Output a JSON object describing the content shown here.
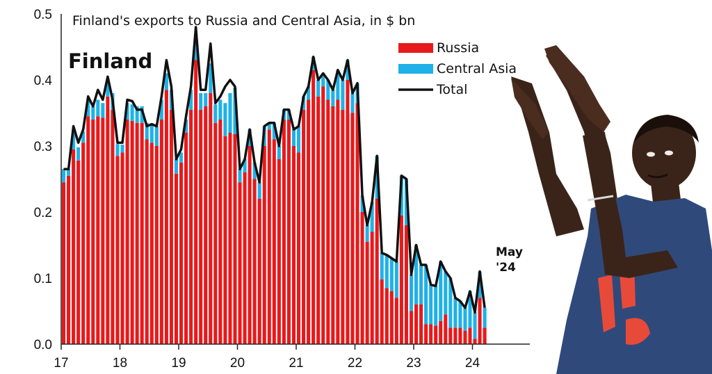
{
  "chart_data": {
    "type": "bar",
    "title": "Finland's exports to Russia and Central Asia, in $ bn",
    "label": "Finland",
    "annotation": [
      "May",
      "'24"
    ],
    "ylim": [
      0,
      0.5
    ],
    "yticks": [
      "0.0",
      "0.1",
      "0.2",
      "0.3",
      "0.4",
      "0.5"
    ],
    "xticks": [
      "17",
      "18",
      "19",
      "20",
      "21",
      "22",
      "23",
      "24"
    ],
    "x_start": "2017-01",
    "x_end": "2024-05",
    "stacked": true,
    "grid": false,
    "legend_position": "top-right",
    "legend": [
      {
        "label": "Russia",
        "color": "#e8191b",
        "kind": "bar"
      },
      {
        "label": "Central Asia",
        "color": "#1fb1e8",
        "kind": "bar"
      },
      {
        "label": "Total",
        "color": "#111111",
        "kind": "line"
      }
    ],
    "series": [
      {
        "name": "Russia",
        "color": "#e8191b",
        "values": [
          0.245,
          0.255,
          0.295,
          0.278,
          0.305,
          0.345,
          0.34,
          0.345,
          0.343,
          0.375,
          0.355,
          0.285,
          0.29,
          0.34,
          0.338,
          0.335,
          0.335,
          0.31,
          0.305,
          0.3,
          0.34,
          0.385,
          0.355,
          0.258,
          0.275,
          0.32,
          0.355,
          0.43,
          0.355,
          0.36,
          0.38,
          0.335,
          0.34,
          0.315,
          0.32,
          0.318,
          0.245,
          0.26,
          0.3,
          0.25,
          0.22,
          0.3,
          0.325,
          0.31,
          0.28,
          0.34,
          0.34,
          0.3,
          0.29,
          0.355,
          0.37,
          0.415,
          0.375,
          0.39,
          0.37,
          0.36,
          0.37,
          0.355,
          0.4,
          0.35,
          0.365,
          0.2,
          0.155,
          0.17,
          0.22,
          0.098,
          0.085,
          0.08,
          0.07,
          0.195,
          0.18,
          0.05,
          0.06,
          0.06,
          0.03,
          0.03,
          0.028,
          0.035,
          0.045,
          0.025,
          0.025,
          0.025,
          0.02,
          0.025,
          0.008,
          0.07,
          0.025
        ]
      },
      {
        "name": "Central Asia",
        "color": "#1fb1e8",
        "values": [
          0.02,
          0.01,
          0.025,
          0.02,
          0.017,
          0.025,
          0.02,
          0.025,
          0.022,
          0.025,
          0.025,
          0.018,
          0.012,
          0.025,
          0.025,
          0.025,
          0.025,
          0.025,
          0.027,
          0.03,
          0.03,
          0.025,
          0.03,
          0.022,
          0.015,
          0.02,
          0.03,
          0.04,
          0.025,
          0.02,
          0.045,
          0.028,
          0.03,
          0.05,
          0.06,
          0.07,
          0.02,
          0.02,
          0.025,
          0.025,
          0.025,
          0.03,
          0.01,
          0.025,
          0.02,
          0.015,
          0.015,
          0.025,
          0.04,
          0.02,
          0.02,
          0.02,
          0.025,
          0.02,
          0.03,
          0.025,
          0.045,
          0.045,
          0.03,
          0.03,
          0.03,
          0.025,
          0.025,
          0.045,
          0.065,
          0.04,
          0.05,
          0.05,
          0.055,
          0.06,
          0.07,
          0.055,
          0.09,
          0.06,
          0.09,
          0.06,
          0.06,
          0.09,
          0.065,
          0.075,
          0.045,
          0.04,
          0.035,
          0.055,
          0.04,
          0.04,
          0.03
        ]
      },
      {
        "name": "Total",
        "color": "#111111",
        "values": [
          0.265,
          0.265,
          0.33,
          0.305,
          0.325,
          0.375,
          0.36,
          0.385,
          0.37,
          0.405,
          0.37,
          0.305,
          0.305,
          0.37,
          0.368,
          0.355,
          0.355,
          0.33,
          0.333,
          0.33,
          0.375,
          0.43,
          0.39,
          0.28,
          0.295,
          0.345,
          0.39,
          0.48,
          0.385,
          0.385,
          0.455,
          0.365,
          0.375,
          0.39,
          0.4,
          0.39,
          0.265,
          0.28,
          0.325,
          0.275,
          0.245,
          0.33,
          0.335,
          0.335,
          0.3,
          0.355,
          0.355,
          0.325,
          0.33,
          0.375,
          0.39,
          0.435,
          0.4,
          0.41,
          0.4,
          0.385,
          0.415,
          0.4,
          0.43,
          0.38,
          0.395,
          0.225,
          0.18,
          0.215,
          0.285,
          0.138,
          0.135,
          0.13,
          0.125,
          0.255,
          0.25,
          0.105,
          0.15,
          0.12,
          0.12,
          0.09,
          0.088,
          0.125,
          0.11,
          0.1,
          0.07,
          0.065,
          0.055,
          0.08,
          0.048,
          0.11,
          0.055
        ]
      }
    ]
  },
  "photo": {
    "shirt_color": "#2f4a7a",
    "skin_color": "#3a2419"
  }
}
